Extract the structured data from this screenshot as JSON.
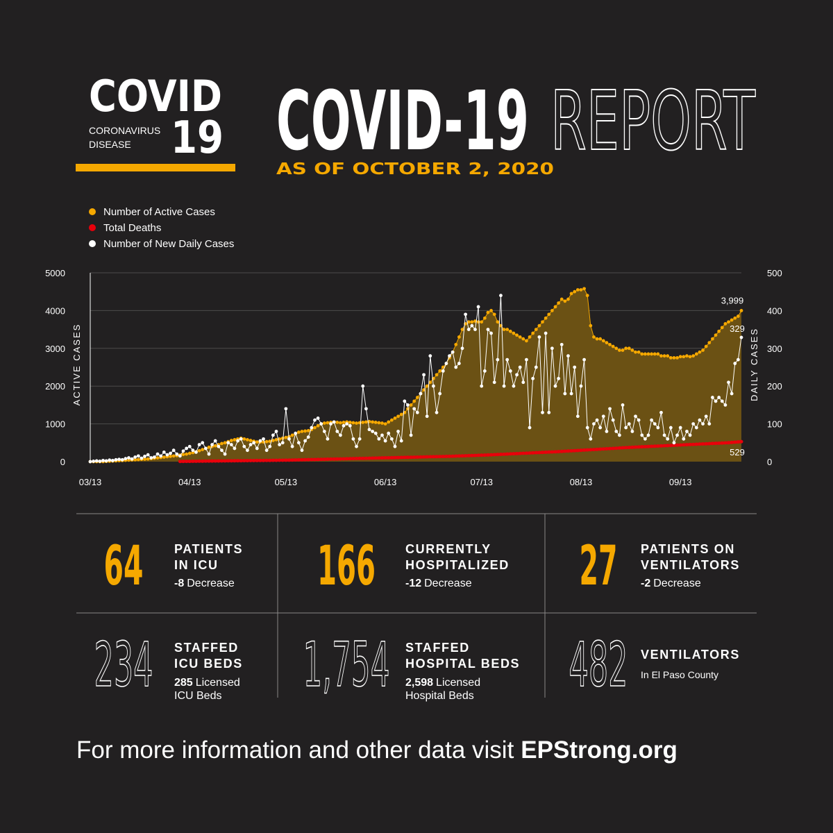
{
  "header": {
    "logo_word": "COVID",
    "logo_number": "19",
    "logo_sub": [
      "CORONAVIRUS",
      "DISEASE"
    ],
    "title": "COVID-19",
    "title_outline": "REPORT",
    "date": "AS OF OCTOBER 2, 2020"
  },
  "chart_data": {
    "type": "line",
    "ylabel": "ACTIVE CASES",
    "y2label": "DAILY CASES",
    "categories": [
      "03/13",
      null,
      null,
      null,
      null,
      null,
      null,
      null,
      null,
      null,
      null,
      null,
      null,
      null,
      null,
      null,
      null,
      null,
      null,
      null,
      null,
      null,
      null,
      null,
      null,
      null,
      null,
      null,
      null,
      null,
      null,
      "04/13",
      null,
      null,
      null,
      null,
      null,
      null,
      null,
      null,
      null,
      null,
      null,
      null,
      null,
      null,
      null,
      null,
      null,
      null,
      null,
      null,
      null,
      null,
      null,
      null,
      null,
      null,
      null,
      null,
      null,
      "05/13",
      null,
      null,
      null,
      null,
      null,
      null,
      null,
      null,
      null,
      null,
      null,
      null,
      null,
      null,
      null,
      null,
      null,
      null,
      null,
      null,
      null,
      null,
      null,
      null,
      null,
      null,
      null,
      null,
      null,
      null,
      "06/13",
      null,
      null,
      null,
      null,
      null,
      null,
      null,
      null,
      null,
      null,
      null,
      null,
      null,
      null,
      null,
      null,
      null,
      null,
      null,
      null,
      null,
      null,
      null,
      null,
      null,
      null,
      null,
      null,
      null,
      "07/13",
      null,
      null,
      null,
      null,
      null,
      null,
      null,
      null,
      null,
      null,
      null,
      null,
      null,
      null,
      null,
      null,
      null,
      null,
      null,
      null,
      null,
      null,
      null,
      null,
      null,
      null,
      null,
      null,
      null,
      null,
      "08/13",
      null,
      null,
      null,
      null,
      null,
      null,
      null,
      null,
      null,
      null,
      null,
      null,
      null,
      null,
      null,
      null,
      null,
      null,
      null,
      null,
      null,
      null,
      null,
      null,
      null,
      null,
      null,
      null,
      null,
      null,
      "09/13",
      null,
      null,
      null,
      null,
      null,
      null,
      null,
      null,
      null,
      null,
      null,
      null,
      null,
      null,
      null,
      null,
      null,
      null,
      null
    ],
    "series": [
      {
        "name": "Number of Active Cases",
        "color": "#f5a800",
        "area_color": "#6b5114",
        "end_label": "3,999",
        "values": [
          0,
          0,
          0,
          0,
          0,
          5,
          10,
          15,
          20,
          25,
          30,
          35,
          40,
          45,
          50,
          55,
          60,
          65,
          70,
          80,
          90,
          100,
          110,
          120,
          130,
          140,
          150,
          160,
          175,
          190,
          200,
          220,
          240,
          260,
          290,
          320,
          350,
          380,
          400,
          420,
          450,
          480,
          500,
          530,
          560,
          580,
          600,
          620,
          600,
          580,
          560,
          540,
          520,
          520,
          520,
          530,
          540,
          560,
          580,
          600,
          620,
          640,
          660,
          700,
          740,
          780,
          800,
          810,
          820,
          850,
          900,
          950,
          1000,
          1020,
          1030,
          1040,
          1050,
          1040,
          1030,
          1040,
          1050,
          1040,
          1030,
          1020,
          1030,
          1040,
          1050,
          1060,
          1050,
          1040,
          1030,
          1020,
          1000,
          1050,
          1100,
          1150,
          1200,
          1250,
          1300,
          1400,
          1500,
          1600,
          1700,
          1800,
          1900,
          2000,
          2100,
          2200,
          2300,
          2400,
          2500,
          2600,
          2750,
          2900,
          3100,
          3300,
          3500,
          3650,
          3700,
          3700,
          3720,
          3700,
          3700,
          3800,
          3950,
          4000,
          3900,
          3700,
          3600,
          3500,
          3500,
          3450,
          3400,
          3350,
          3300,
          3250,
          3200,
          3300,
          3400,
          3500,
          3600,
          3700,
          3800,
          3900,
          4000,
          4100,
          4200,
          4300,
          4250,
          4300,
          4450,
          4500,
          4550,
          4550,
          4580,
          4400,
          3600,
          3300,
          3250,
          3250,
          3200,
          3150,
          3100,
          3050,
          3000,
          2950,
          2950,
          3000,
          3000,
          2950,
          2900,
          2900,
          2850,
          2850,
          2850,
          2850,
          2850,
          2850,
          2800,
          2800,
          2800,
          2750,
          2750,
          2750,
          2780,
          2780,
          2800,
          2780,
          2800,
          2850,
          2900,
          2950,
          3050,
          3150,
          3250,
          3350,
          3450,
          3550,
          3650,
          3700,
          3750,
          3800,
          3850,
          3999
        ]
      },
      {
        "name": "Total Deaths",
        "color": "#e8000b",
        "values": [
          null,
          null,
          null,
          null,
          null,
          null,
          null,
          null,
          null,
          null,
          null,
          null,
          null,
          null,
          null,
          null,
          null,
          null,
          null,
          null,
          null,
          null,
          null,
          null,
          null,
          null,
          null,
          null,
          5,
          6,
          7,
          8,
          9,
          10,
          11,
          12,
          13,
          14,
          15,
          16,
          17,
          18,
          19,
          20,
          21,
          22,
          23,
          24,
          25,
          26,
          27,
          28,
          29,
          30,
          31,
          32,
          33,
          34,
          35,
          36,
          37,
          38,
          40,
          42,
          44,
          46,
          48,
          50,
          52,
          54,
          56,
          58,
          60,
          62,
          64,
          66,
          68,
          70,
          72,
          74,
          76,
          78,
          80,
          82,
          84,
          86,
          88,
          90,
          92,
          94,
          96,
          98,
          100,
          102,
          104,
          106,
          108,
          110,
          112,
          114,
          116,
          118,
          120,
          122,
          124,
          126,
          128,
          130,
          132,
          134,
          136,
          138,
          140,
          143,
          146,
          149,
          152,
          155,
          158,
          161,
          164,
          167,
          170,
          173,
          176,
          180,
          184,
          188,
          192,
          196,
          200,
          204,
          208,
          212,
          216,
          220,
          224,
          228,
          232,
          236,
          240,
          244,
          248,
          252,
          256,
          260,
          265,
          270,
          275,
          280,
          285,
          290,
          295,
          300,
          305,
          310,
          315,
          320,
          325,
          330,
          335,
          340,
          345,
          350,
          355,
          360,
          365,
          370,
          375,
          380,
          384,
          388,
          392,
          396,
          400,
          404,
          408,
          412,
          416,
          420,
          424,
          428,
          432,
          436,
          440,
          444,
          448,
          452,
          456,
          460,
          464,
          468,
          472,
          476,
          480,
          484,
          488,
          492,
          496,
          500,
          508,
          515,
          522,
          529
        ]
      },
      {
        "name": "Number of New Daily Cases",
        "color": "#ffffff",
        "axis": "y2",
        "values": [
          0,
          1,
          2,
          1,
          3,
          2,
          4,
          3,
          5,
          6,
          5,
          8,
          10,
          7,
          12,
          15,
          9,
          14,
          18,
          10,
          12,
          20,
          15,
          25,
          18,
          22,
          30,
          20,
          15,
          28,
          35,
          40,
          30,
          25,
          45,
          50,
          35,
          20,
          45,
          55,
          40,
          30,
          20,
          50,
          45,
          35,
          55,
          60,
          40,
          30,
          45,
          50,
          35,
          55,
          60,
          30,
          40,
          70,
          80,
          45,
          50,
          140,
          60,
          40,
          75,
          50,
          30,
          55,
          65,
          90,
          110,
          115,
          100,
          80,
          60,
          100,
          105,
          80,
          70,
          95,
          100,
          95,
          60,
          40,
          60,
          200,
          140,
          85,
          80,
          75,
          60,
          70,
          55,
          75,
          60,
          40,
          80,
          55,
          160,
          150,
          70,
          140,
          130,
          180,
          230,
          120,
          280,
          200,
          130,
          180,
          240,
          260,
          280,
          290,
          250,
          260,
          300,
          390,
          350,
          360,
          350,
          410,
          200,
          240,
          350,
          340,
          210,
          270,
          440,
          200,
          270,
          240,
          200,
          230,
          250,
          210,
          270,
          90,
          220,
          250,
          330,
          130,
          340,
          130,
          300,
          200,
          220,
          310,
          180,
          280,
          180,
          250,
          120,
          200,
          270,
          90,
          60,
          100,
          110,
          90,
          120,
          80,
          140,
          110,
          80,
          70,
          150,
          90,
          100,
          80,
          120,
          110,
          70,
          60,
          70,
          110,
          100,
          90,
          130,
          70,
          60,
          90,
          50,
          70,
          90,
          60,
          80,
          70,
          100,
          90,
          110,
          100,
          120,
          100,
          170,
          160,
          170,
          160,
          150,
          210,
          180,
          260,
          270,
          329
        ]
      }
    ],
    "ylim": [
      0,
      5000
    ],
    "yticks": [
      0,
      1000,
      2000,
      3000,
      4000,
      5000
    ],
    "y2lim": [
      0,
      500
    ],
    "y2ticks": [
      0,
      100,
      200,
      300,
      400,
      500
    ],
    "grid": true
  },
  "stats": [
    {
      "value": "64",
      "label": [
        "PATIENTS",
        "IN ICU"
      ],
      "change": "-8",
      "change_text": "Decrease"
    },
    {
      "value": "166",
      "label": [
        "CURRENTLY",
        "HOSPITALIZED"
      ],
      "change": "-12",
      "change_text": "Decrease"
    },
    {
      "value": "27",
      "label": [
        "PATIENTS ON",
        "VENTILATORS"
      ],
      "change": "-2",
      "change_text": "Decrease"
    }
  ],
  "capacity": [
    {
      "value": "234",
      "label": [
        "STAFFED",
        "ICU BEDS"
      ],
      "licensed": "285",
      "note": [
        "Licensed",
        "ICU Beds"
      ]
    },
    {
      "value": "1,754",
      "label": [
        "STAFFED",
        "HOSPITAL BEDS"
      ],
      "licensed": "2,598",
      "note": [
        "Licensed",
        "Hospital Beds"
      ]
    },
    {
      "value": "482",
      "label": [
        "VENTILATORS"
      ],
      "note": [
        "In El Paso County"
      ]
    }
  ],
  "footer": {
    "text": "For more information and other data visit",
    "link": "EPStrong.org"
  }
}
